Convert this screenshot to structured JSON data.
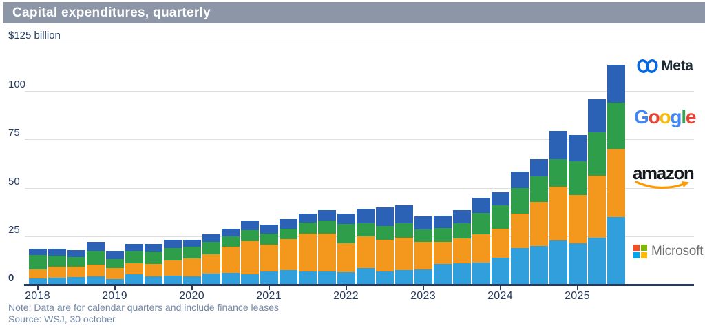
{
  "header": {
    "title": "Capital expenditures, quarterly"
  },
  "y_axis": {
    "unit_label": "$125 billion",
    "tick_labels": [
      "100",
      "75",
      "50",
      "25",
      "0"
    ],
    "tick_values": [
      100,
      75,
      50,
      25,
      0
    ]
  },
  "x_axis": {
    "year_labels": [
      "2018",
      "2019",
      "2020",
      "2021",
      "2022",
      "2023",
      "2024",
      "2025"
    ]
  },
  "footer": {
    "note": "Note: Data are for calendar quarters and include finance leases",
    "source": "Source: WSJ, 30 october"
  },
  "legend": {
    "items": [
      {
        "label": "Meta",
        "icon": "meta-infinity-icon",
        "color": "#2C62B5"
      },
      {
        "label": "Google",
        "icon": "google-wordmark-icon",
        "color": "#2E9E4A"
      },
      {
        "label": "amazon",
        "icon": "amazon-smile-icon",
        "color": "#F3981D"
      },
      {
        "label": "Microsoft",
        "icon": "microsoft-squares-icon",
        "color": "#319FDB"
      }
    ],
    "google_letters": [
      "G",
      "o",
      "o",
      "g",
      "l",
      "e"
    ],
    "google_letter_colors": [
      "#4285F4",
      "#EA4335",
      "#FBBC05",
      "#4285F4",
      "#34A853",
      "#EA4335"
    ],
    "microsoft_square_colors": [
      "#F25022",
      "#7FBA00",
      "#00A4EF",
      "#FFB900"
    ]
  },
  "colors": {
    "banner": "#8C96A7",
    "axis": "#253A5E",
    "text": "#253C5F",
    "muted_text": "#7389A8",
    "gridline": "#DEDEDE",
    "microsoft_bar": "#319FDB",
    "amazon_bar": "#F3981D",
    "google_bar": "#2E9E4A",
    "meta_bar": "#2C62B5"
  },
  "chart_data": {
    "type": "bar",
    "subtype": "stacked",
    "title": "Capital expenditures, quarterly",
    "unit": "USD billions",
    "ylim": [
      0,
      125
    ],
    "gridline_values": [
      25,
      50,
      75,
      100,
      125
    ],
    "legend_position": "right",
    "x": [
      "2018 Q1",
      "2018 Q2",
      "2018 Q3",
      "2018 Q4",
      "2019 Q1",
      "2019 Q2",
      "2019 Q3",
      "2019 Q4",
      "2020 Q1",
      "2020 Q2",
      "2020 Q3",
      "2020 Q4",
      "2021 Q1",
      "2021 Q2",
      "2021 Q3",
      "2021 Q4",
      "2022 Q1",
      "2022 Q2",
      "2022 Q3",
      "2022 Q4",
      "2023 Q1",
      "2023 Q2",
      "2023 Q3",
      "2023 Q4",
      "2024 Q1",
      "2024 Q2",
      "2024 Q3",
      "2024 Q4",
      "2025 Q1",
      "2025 Q2",
      "2025 Q3"
    ],
    "series": [
      {
        "name": "Microsoft",
        "color": "#319FDB",
        "values": [
          3.2,
          3.7,
          3.9,
          4.3,
          3.0,
          5.3,
          4.3,
          4.5,
          4.3,
          5.8,
          5.9,
          5.4,
          6.6,
          7.3,
          6.7,
          6.8,
          6.3,
          8.7,
          6.6,
          7.5,
          7.8,
          10.7,
          11.2,
          11.5,
          14.0,
          19.0,
          20.0,
          22.6,
          21.4,
          24.2,
          34.9
        ]
      },
      {
        "name": "Amazon",
        "color": "#F3981D",
        "values": [
          4.8,
          5.6,
          5.2,
          6.1,
          5.4,
          5.9,
          6.2,
          8.0,
          9.2,
          10.0,
          13.5,
          17.0,
          14.0,
          16.2,
          19.5,
          19.5,
          15.1,
          16.1,
          16.4,
          16.6,
          14.2,
          11.5,
          12.5,
          14.6,
          15.0,
          17.6,
          22.6,
          27.8,
          25.0,
          32.0,
          35.1
        ]
      },
      {
        "name": "Google",
        "color": "#2E9E4A",
        "values": [
          7.3,
          5.5,
          5.3,
          7.1,
          4.9,
          6.1,
          6.7,
          6.5,
          6.0,
          6.2,
          5.4,
          5.7,
          5.9,
          5.5,
          6.0,
          6.9,
          9.8,
          6.8,
          7.3,
          7.6,
          6.3,
          6.9,
          8.1,
          11.0,
          12.0,
          13.2,
          13.1,
          14.3,
          17.2,
          22.4,
          24.0
        ]
      },
      {
        "name": "Meta",
        "color": "#2C62B5",
        "values": [
          3.2,
          3.6,
          3.5,
          4.5,
          4.0,
          3.8,
          3.7,
          4.3,
          3.7,
          4.0,
          3.9,
          4.9,
          4.3,
          4.7,
          4.5,
          5.4,
          5.5,
          7.7,
          9.5,
          9.2,
          7.1,
          6.4,
          6.8,
          7.9,
          6.7,
          8.5,
          9.2,
          14.8,
          13.7,
          17.0,
          19.4
        ]
      }
    ]
  }
}
